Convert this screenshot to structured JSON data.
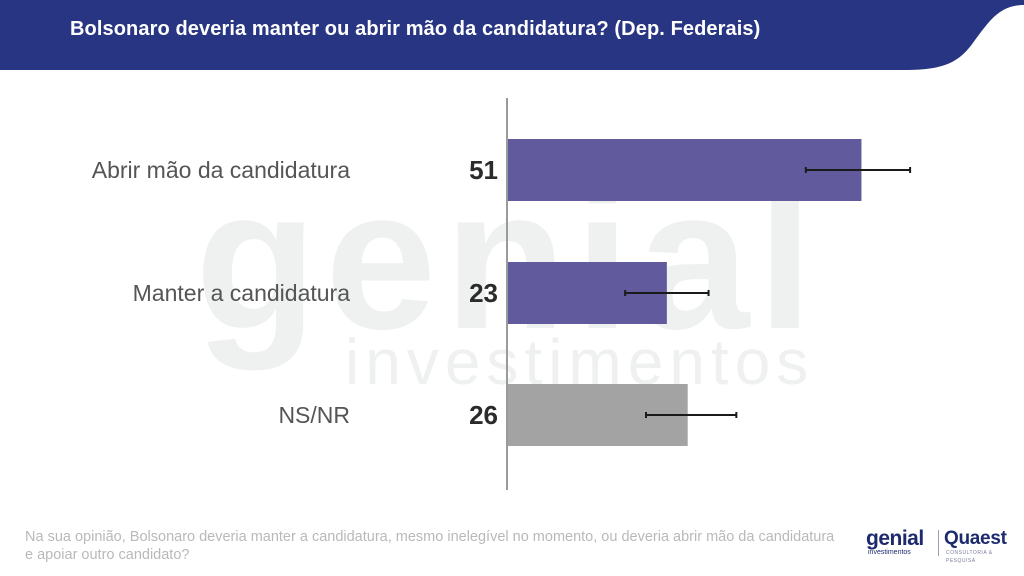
{
  "header": {
    "title": "Bolsonaro deveria manter ou abrir mão da candidatura? (Dep.  Federais)",
    "color": "#283583"
  },
  "watermark": {
    "word": "genial",
    "sub": "investimentos"
  },
  "chart_data": {
    "type": "bar",
    "orientation": "horizontal",
    "title": "Bolsonaro deveria manter ou abrir mão da candidatura? (Dep.  Federais)",
    "categories": [
      "Abrir mão da candidatura",
      "Manter a candidatura",
      "NS/NR"
    ],
    "values": [
      51,
      23,
      26
    ],
    "error_bars": [
      {
        "low": 43,
        "high": 58
      },
      {
        "low": 17,
        "high": 29
      },
      {
        "low": 20,
        "high": 33
      }
    ],
    "colors": [
      "#615a9c",
      "#615a9c",
      "#a3a3a3"
    ],
    "xlim": [
      0,
      100
    ],
    "grid": false,
    "legend": "none",
    "xlabel": "",
    "ylabel": ""
  },
  "footnote": "Na sua opinião, Bolsonaro deveria manter a candidatura, mesmo inelegível no momento, ou deveria abrir mão da candidatura e apoiar outro candidato?",
  "logos": {
    "genial": "genial",
    "genial_sub": "investimentos",
    "quaest": "Quaest",
    "quaest_sub": "CONSULTORIA & PESQUISA"
  }
}
